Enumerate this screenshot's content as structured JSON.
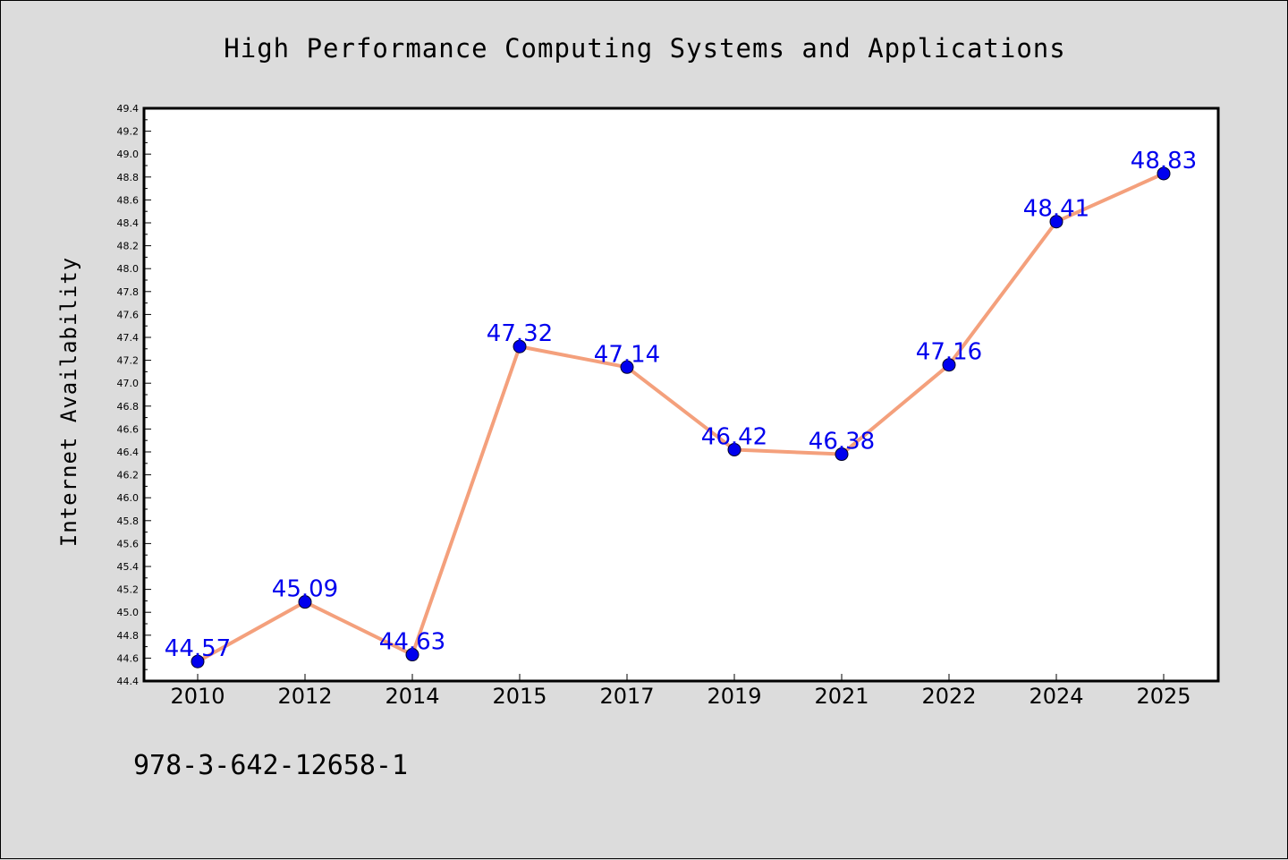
{
  "chart_data": {
    "type": "line",
    "title": "High Performance Computing Systems and Applications",
    "xlabel": "",
    "ylabel": "Internet Availability",
    "categories": [
      "2010",
      "2012",
      "2014",
      "2015",
      "2017",
      "2019",
      "2021",
      "2022",
      "2024",
      "2025"
    ],
    "series": [
      {
        "values": [
          44.57,
          45.09,
          44.63,
          47.32,
          47.14,
          46.42,
          46.38,
          47.16,
          48.41,
          48.83
        ],
        "line_color": "#f4a07c",
        "marker_color": "#0000ee"
      }
    ],
    "data_labels": [
      "44.57",
      "45.09",
      "44.63",
      "47.32",
      "47.14",
      "46.42",
      "46.38",
      "47.16",
      "48.41",
      "48.83"
    ],
    "ylim": [
      44.4,
      49.4
    ],
    "yticks": [
      "44.4",
      "44.6",
      "44.8",
      "45.0",
      "45.2",
      "45.4",
      "45.6",
      "45.8",
      "46.0",
      "46.2",
      "46.4",
      "46.6",
      "46.8",
      "47.0",
      "47.2",
      "47.4",
      "47.6",
      "47.8",
      "48.0",
      "48.2",
      "48.4",
      "48.6",
      "48.8",
      "49.0",
      "49.2",
      "49.4"
    ],
    "grid": false,
    "legend": "none"
  },
  "footer_text": "978-3-642-12658-1",
  "colors": {
    "background": "#dcdcdc",
    "plot_background": "#ffffff",
    "line": "#f4a07c",
    "marker": "#0000ee",
    "data_label": "#0000ee"
  }
}
